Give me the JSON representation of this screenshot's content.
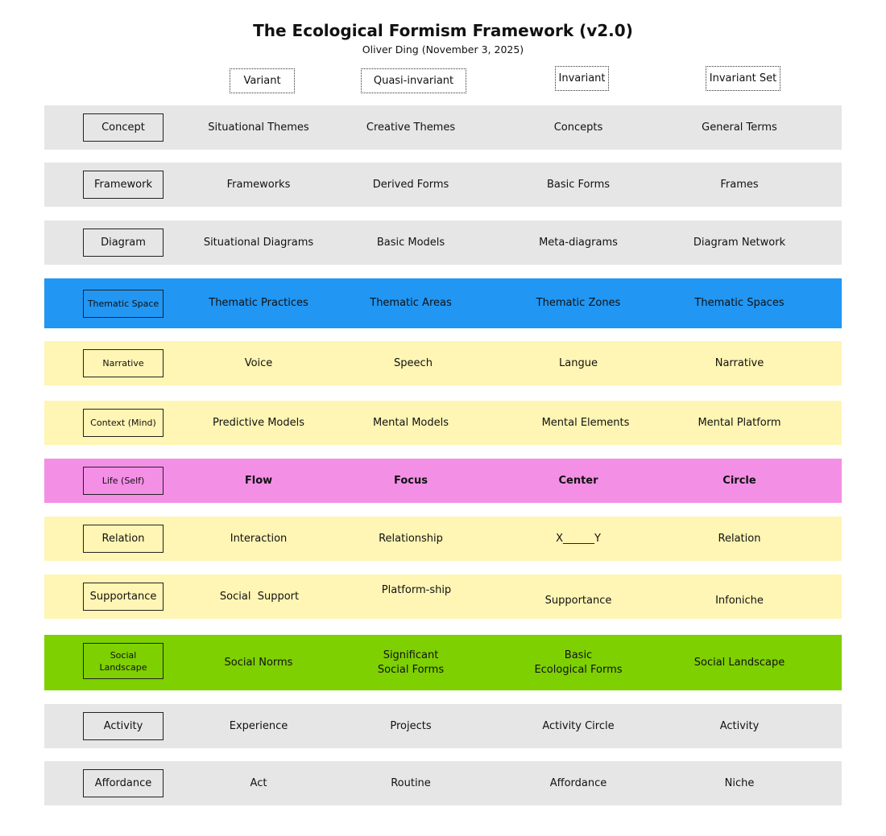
{
  "title": "The Ecological Formism Framework (v2.0)",
  "subtitle": "Oliver Ding (November 3, 2025)",
  "columns": [
    "Variant",
    "Quasi-invariant",
    "Invariant",
    "Invariant Set"
  ],
  "colors": {
    "gray": "#e6e6e6",
    "blue": "#2196f3",
    "yellow": "#fff5b4",
    "pink": "#f48fe6",
    "green": "#7ed000"
  },
  "rows": [
    {
      "label": "Concept",
      "color": "gray",
      "cells": [
        "Situational Themes",
        "Creative Themes",
        "Concepts",
        "General Terms"
      ]
    },
    {
      "label": "Framework",
      "color": "gray",
      "cells": [
        "Frameworks",
        "Derived Forms",
        "Basic Forms",
        "Frames"
      ]
    },
    {
      "label": "Diagram",
      "color": "gray",
      "cells": [
        "Situational Diagrams",
        "Basic Models",
        "Meta-diagrams",
        "Diagram Network"
      ]
    },
    {
      "label": "Thematic Space",
      "color": "blue",
      "cells": [
        "Thematic Practices",
        "Thematic Areas",
        "Thematic Zones",
        "Thematic Spaces"
      ]
    },
    {
      "label": "Narrative",
      "color": "yellow",
      "cells": [
        "Voice",
        "Speech",
        "Langue",
        "Narrative"
      ]
    },
    {
      "label": "Context (Mind)",
      "color": "yellow",
      "cells": [
        "Predictive Models",
        "Mental Models",
        "Mental Elements",
        "Mental Platform"
      ]
    },
    {
      "label": "Life (Self)",
      "color": "pink",
      "cells": [
        "Flow",
        "Focus",
        "Center",
        "Circle"
      ]
    },
    {
      "label": "Relation",
      "color": "yellow",
      "cells": [
        "Interaction",
        "Relationship",
        "X______Y",
        "Relation"
      ]
    },
    {
      "label": "Supportance",
      "color": "yellow",
      "cells": [
        "Social  Support",
        "Platform-ship",
        "Supportance",
        "Infoniche"
      ]
    },
    {
      "label": "Social\nLandscape",
      "color": "green",
      "cells": [
        "Social Norms",
        "Significant\nSocial Forms",
        "Basic\nEcological Forms",
        "Social Landscape"
      ]
    },
    {
      "label": "Activity",
      "color": "gray",
      "cells": [
        "Experience",
        "Projects",
        "Activity Circle",
        "Activity"
      ]
    },
    {
      "label": "Affordance",
      "color": "gray",
      "cells": [
        "Act",
        "Routine",
        "Affordance",
        "Niche"
      ]
    }
  ]
}
